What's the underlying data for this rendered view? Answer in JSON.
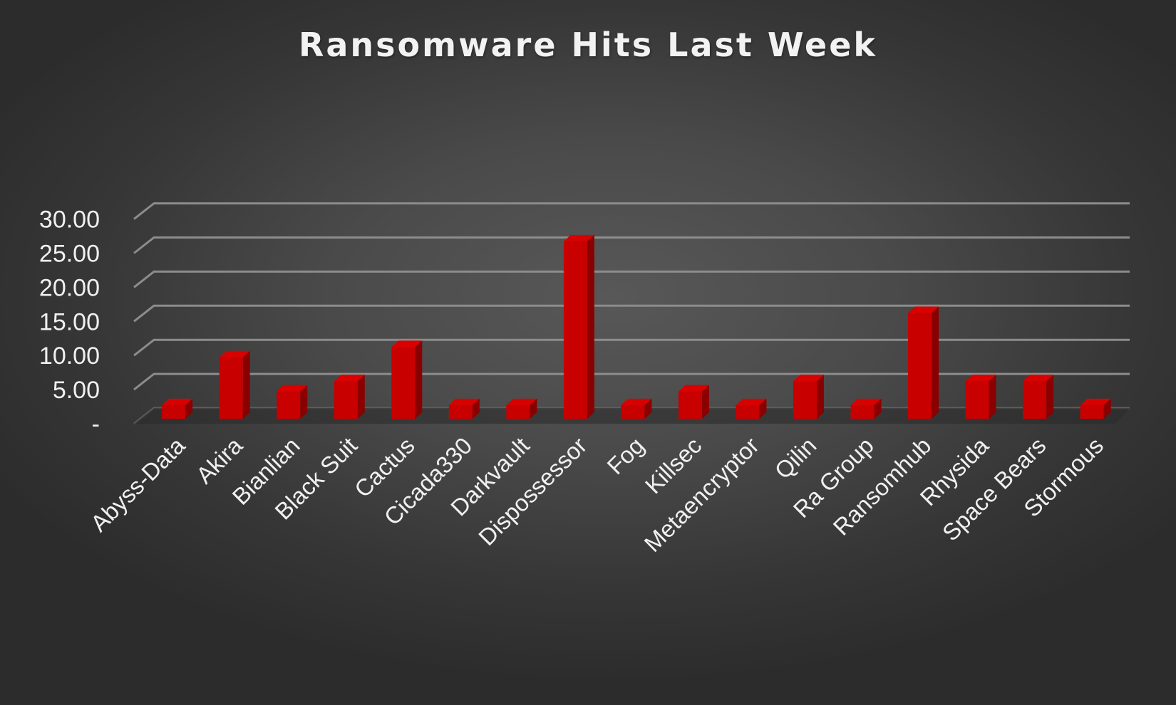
{
  "chart_data": {
    "type": "bar",
    "title": "Ransomware Hits Last Week",
    "xlabel": "",
    "ylabel": "",
    "ylim": [
      0,
      30
    ],
    "yticks": [
      0,
      5,
      10,
      15,
      20,
      25,
      30
    ],
    "ytick_labels": [
      "-",
      "5.00",
      "10.00",
      "15.00",
      "20.00",
      "25.00",
      "30.00"
    ],
    "grid": true,
    "style": "3d-column",
    "bar_color": "#c00000",
    "categories": [
      "Abyss-Data",
      "Akira",
      "Bianlian",
      "Black Suit",
      "Cactus",
      "Cicada330",
      "Darkvault",
      "Dispossessor",
      "Fog",
      "Killsec",
      "Metaencryptor",
      "Qilin",
      "Ra Group",
      "Ransomhub",
      "Rhysida",
      "Space Bears",
      "Stormous"
    ],
    "values": [
      2,
      9,
      4,
      5.5,
      10.5,
      2,
      2,
      26,
      2,
      4,
      2,
      5.5,
      2,
      15.5,
      5.5,
      5.5,
      2
    ]
  }
}
